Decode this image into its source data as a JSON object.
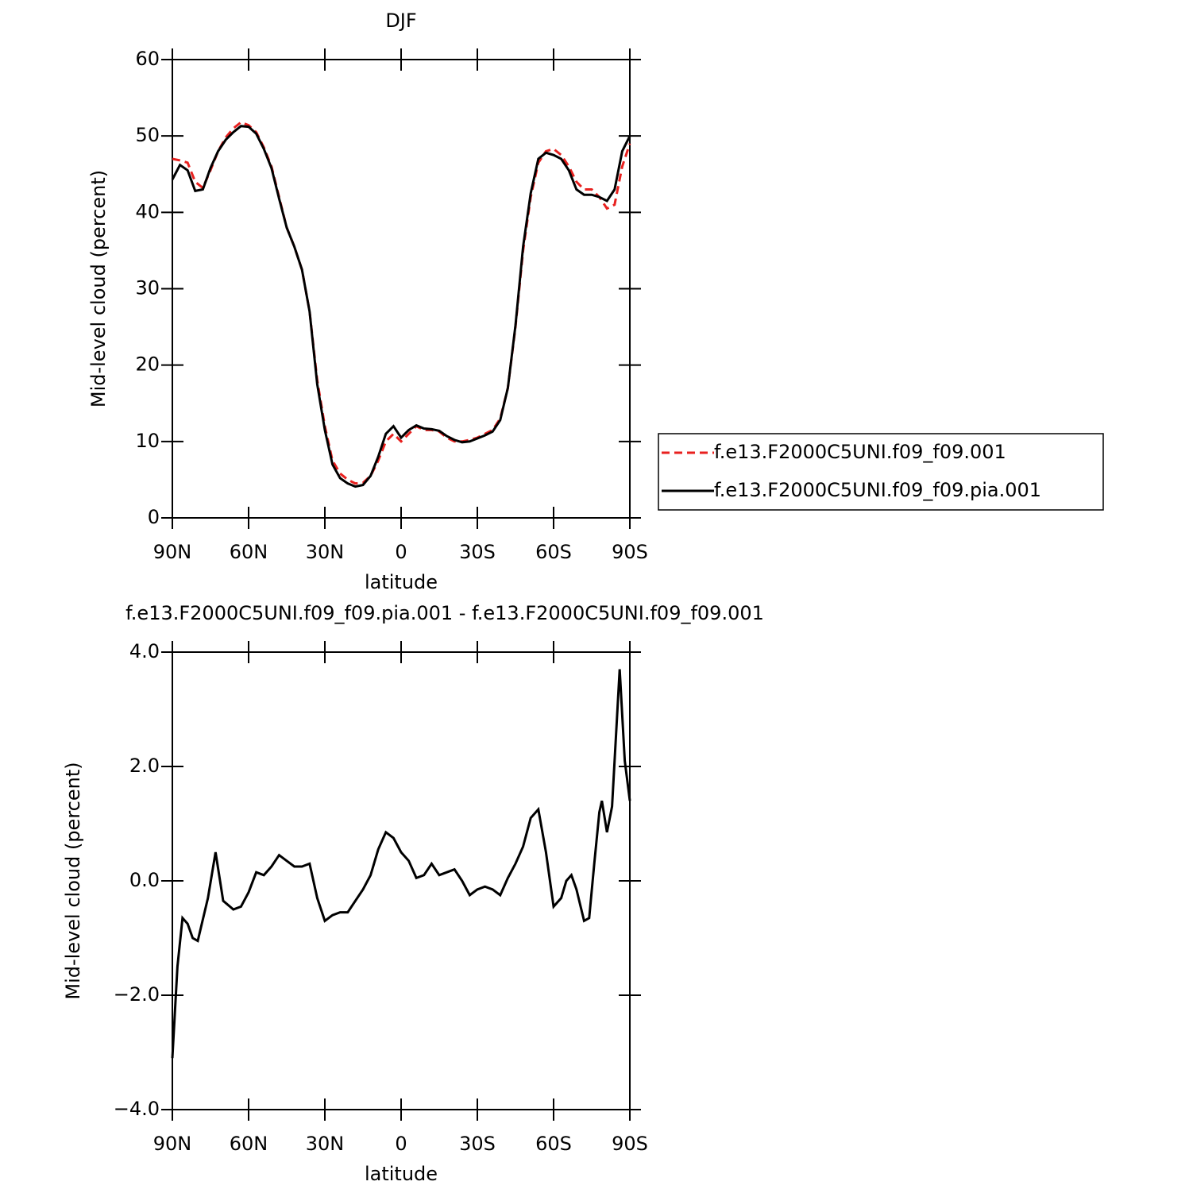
{
  "chart_data": [
    {
      "type": "line",
      "title": "DJF",
      "xlabel": "latitude",
      "ylabel": "Mid-level cloud (percent)",
      "x": [
        90,
        87,
        84,
        81,
        78,
        75,
        72,
        69,
        66,
        63,
        60,
        57,
        54,
        51,
        48,
        45,
        42,
        39,
        36,
        33,
        30,
        27,
        24,
        21,
        18,
        15,
        12,
        9,
        6,
        3,
        0,
        -3,
        -6,
        -9,
        -12,
        -15,
        -18,
        -21,
        -24,
        -27,
        -30,
        -33,
        -36,
        -39,
        -42,
        -45,
        -48,
        -51,
        -54,
        -57,
        -60,
        -63,
        -66,
        -69,
        -72,
        -75,
        -78,
        -81,
        -84,
        -87,
        -90
      ],
      "series": [
        {
          "name": "f.e13.F2000C5UNI.f09_f09.001",
          "color": "#e8211f",
          "linestyle": "dashed",
          "values": [
            47,
            46.8,
            46.5,
            44,
            43.2,
            45.5,
            48,
            49.8,
            51,
            51.8,
            51.4,
            50.5,
            48.5,
            46,
            42,
            38,
            35.5,
            32.5,
            27,
            18,
            12,
            7.5,
            5.8,
            5,
            4.5,
            4.6,
            5.5,
            7.5,
            10,
            11,
            10,
            11,
            12,
            11.5,
            11.5,
            11.3,
            10.5,
            10,
            10,
            10.2,
            10.5,
            11,
            11.5,
            13,
            17,
            25,
            35,
            42,
            46.5,
            48,
            48.3,
            47.5,
            46,
            44,
            43,
            43,
            42,
            40.5,
            41,
            46,
            49
          ]
        },
        {
          "name": "f.e13.F2000C5UNI.f09_f09.pia.001",
          "color": "#000000",
          "linestyle": "solid",
          "values": [
            44.3,
            46.2,
            45.5,
            42.8,
            43,
            45.8,
            48,
            49.5,
            50.5,
            51.3,
            51.2,
            50.3,
            48.3,
            45.8,
            41.8,
            38,
            35.5,
            32.5,
            27,
            17.5,
            11.5,
            7,
            5.2,
            4.5,
            4.1,
            4.3,
            5.5,
            8,
            11,
            12,
            10.5,
            11.5,
            12.1,
            11.7,
            11.6,
            11.4,
            10.7,
            10.2,
            9.9,
            10,
            10.4,
            10.8,
            11.3,
            12.8,
            17,
            25.2,
            35.5,
            42.5,
            47,
            47.8,
            47.5,
            47,
            45.5,
            43,
            42.3,
            42.3,
            42,
            41.5,
            43,
            48,
            50
          ]
        }
      ],
      "xlim": [
        90,
        -90
      ],
      "xticks": [
        {
          "value": 90,
          "label": "90N"
        },
        {
          "value": 60,
          "label": "60N"
        },
        {
          "value": 30,
          "label": "30N"
        },
        0,
        {
          "value": -30,
          "label": "30S"
        },
        {
          "value": -60,
          "label": "60S"
        },
        {
          "value": -90,
          "label": "90S"
        }
      ],
      "ylim": [
        0,
        60
      ],
      "yticks": [
        0,
        10,
        20,
        30,
        40,
        50,
        60
      ],
      "legend": "right"
    },
    {
      "type": "line",
      "title": "f.e13.F2000C5UNI.f09_f09.pia.001 - f.e13.F2000C5UNI.f09_f09.001",
      "xlabel": "latitude",
      "ylabel": "Mid-level cloud (percent)",
      "x": [
        90,
        88,
        86,
        84,
        82,
        80,
        76,
        73,
        70,
        66,
        63,
        60,
        57,
        54,
        51,
        48,
        45,
        42,
        39,
        36,
        33,
        30,
        27,
        24,
        21,
        18,
        15,
        12,
        9,
        6,
        3,
        0,
        -3,
        -6,
        -9,
        -12,
        -15,
        -18,
        -21,
        -24,
        -27,
        -30,
        -33,
        -36,
        -39,
        -42,
        -45,
        -48,
        -51,
        -54,
        -57,
        -60,
        -63,
        -65,
        -67,
        -69,
        -72,
        -74,
        -76,
        -78,
        -79,
        -81,
        -83,
        -86,
        -88,
        -90
      ],
      "series": [
        {
          "color": "#000000",
          "linestyle": "solid",
          "values": [
            -3.1,
            -1.5,
            -0.65,
            -0.75,
            -1,
            -1.05,
            -0.3,
            0.5,
            -0.35,
            -0.5,
            -0.45,
            -0.2,
            0.15,
            0.1,
            0.25,
            0.45,
            0.35,
            0.25,
            0.25,
            0.3,
            -0.3,
            -0.7,
            -0.6,
            -0.55,
            -0.55,
            -0.35,
            -0.15,
            0.1,
            0.55,
            0.85,
            0.75,
            0.5,
            0.35,
            0.05,
            0.1,
            0.3,
            0.1,
            0.15,
            0.2,
            0,
            -0.25,
            -0.15,
            -0.1,
            -0.15,
            -0.25,
            0.05,
            0.3,
            0.6,
            1.1,
            1.25,
            0.5,
            -0.45,
            -0.3,
            0,
            0.1,
            -0.15,
            -0.7,
            -0.65,
            0.3,
            1.2,
            1.4,
            0.85,
            1.3,
            3.7,
            2.1,
            1.4
          ]
        }
      ],
      "xlim": [
        90,
        -90
      ],
      "xticks": [
        {
          "value": 90,
          "label": "90N"
        },
        {
          "value": 60,
          "label": "60N"
        },
        {
          "value": 30,
          "label": "30N"
        },
        0,
        {
          "value": -30,
          "label": "30S"
        },
        {
          "value": -60,
          "label": "60S"
        },
        {
          "value": -90,
          "label": "90S"
        }
      ],
      "ylim": [
        -4,
        4
      ],
      "yticks": [
        {
          "value": -4,
          "label": "−4.0"
        },
        {
          "value": -2,
          "label": "−2.0"
        },
        {
          "value": 0,
          "label": "0.0"
        },
        {
          "value": 2,
          "label": "2.0"
        },
        {
          "value": 4,
          "label": "4.0"
        }
      ]
    }
  ]
}
